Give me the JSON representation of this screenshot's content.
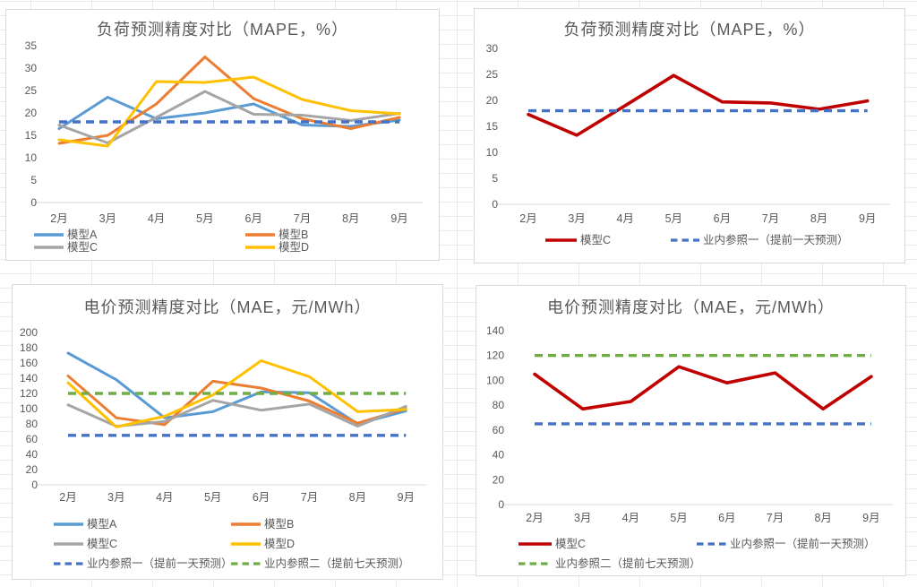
{
  "sheet": {
    "description": "spreadsheet with four embedded forecast accuracy line charts"
  },
  "months": [
    "2月",
    "3月",
    "4月",
    "5月",
    "6月",
    "7月",
    "8月",
    "9月"
  ],
  "chart_data": [
    {
      "type": "line",
      "title": "负荷预测精度对比（MAPE，%）",
      "categories": [
        "2月",
        "3月",
        "4月",
        "5月",
        "6月",
        "7月",
        "8月",
        "9月"
      ],
      "ylim": [
        0,
        35
      ],
      "y_ticks": [
        0,
        5,
        10,
        15,
        20,
        25,
        30,
        35
      ],
      "gridlines": false,
      "legend_position": "bottom",
      "series": [
        {
          "name": "模型A",
          "key": "model-a",
          "color": "#5B9BD5",
          "dash": false,
          "in_legend": true,
          "values": [
            16.5,
            23.5,
            18.7,
            20,
            22,
            17.3,
            17,
            18.4
          ]
        },
        {
          "name": "模型B",
          "key": "model-b",
          "color": "#ED7D31",
          "dash": false,
          "in_legend": true,
          "values": [
            13.2,
            15,
            22,
            32.5,
            23.2,
            18.7,
            16.5,
            19
          ]
        },
        {
          "name": "模型C",
          "key": "model-c",
          "color": "#A5A5A5",
          "dash": false,
          "in_legend": true,
          "values": [
            17.3,
            13.3,
            19,
            24.8,
            19.7,
            19.5,
            18.3,
            19.9
          ]
        },
        {
          "name": "模型D",
          "key": "model-d",
          "color": "#FFC000",
          "dash": false,
          "in_legend": true,
          "values": [
            14,
            12.6,
            27,
            26.8,
            28,
            23,
            20.5,
            19.8
          ]
        },
        {
          "name": "业内参照一（提前一天预测）",
          "key": "industry-ref-1-day-ahead",
          "color": "#4472C4",
          "dash": true,
          "in_legend": false,
          "values": [
            18,
            18,
            18,
            18,
            18,
            18,
            18,
            18
          ]
        }
      ]
    },
    {
      "type": "line",
      "title": "负荷预测精度对比（MAPE，%）",
      "categories": [
        "2月",
        "3月",
        "4月",
        "5月",
        "6月",
        "7月",
        "8月",
        "9月"
      ],
      "ylim": [
        0,
        30
      ],
      "y_ticks": [
        0,
        5,
        10,
        15,
        20,
        25,
        30
      ],
      "gridlines": false,
      "legend_position": "bottom",
      "series": [
        {
          "name": "模型C",
          "key": "model-c",
          "color": "#C00000",
          "dash": false,
          "in_legend": true,
          "values": [
            17.3,
            13.3,
            19,
            24.8,
            19.7,
            19.5,
            18.3,
            19.9
          ]
        },
        {
          "name": "业内参照一（提前一天预测）",
          "key": "industry-ref-1-day-ahead",
          "color": "#4472C4",
          "dash": true,
          "in_legend": true,
          "values": [
            18,
            18,
            18,
            18,
            18,
            18,
            18,
            18
          ]
        }
      ]
    },
    {
      "type": "line",
      "title": "电价预测精度对比（MAE，元/MWh）",
      "categories": [
        "2月",
        "3月",
        "4月",
        "5月",
        "6月",
        "7月",
        "8月",
        "9月"
      ],
      "ylim": [
        0,
        200
      ],
      "y_ticks": [
        0,
        20,
        40,
        60,
        80,
        100,
        120,
        140,
        160,
        180,
        200
      ],
      "gridlines": false,
      "legend_position": "bottom",
      "series": [
        {
          "name": "模型A",
          "key": "model-a",
          "color": "#5B9BD5",
          "dash": false,
          "in_legend": true,
          "values": [
            173,
            138,
            88,
            96,
            122,
            121,
            80,
            97
          ]
        },
        {
          "name": "模型B",
          "key": "model-b",
          "color": "#ED7D31",
          "dash": false,
          "in_legend": true,
          "values": [
            143,
            88,
            79,
            136,
            127,
            110,
            81,
            100
          ]
        },
        {
          "name": "模型C",
          "key": "model-c",
          "color": "#A5A5A5",
          "dash": false,
          "in_legend": true,
          "values": [
            105,
            77,
            83,
            111,
            98,
            106,
            77,
            103
          ]
        },
        {
          "name": "模型D",
          "key": "model-d",
          "color": "#FFC000",
          "dash": false,
          "in_legend": true,
          "values": [
            134,
            76,
            90,
            118,
            163,
            142,
            96,
            99
          ]
        },
        {
          "name": "业内参照一（提前一天预测）",
          "key": "industry-ref-1-day-ahead",
          "color": "#4472C4",
          "dash": true,
          "in_legend": true,
          "values": [
            65,
            65,
            65,
            65,
            65,
            65,
            65,
            65
          ]
        },
        {
          "name": "业内参照二（提前七天预测）",
          "key": "industry-ref-2-seven-day-ahead",
          "color": "#70AD47",
          "dash": true,
          "in_legend": true,
          "values": [
            120,
            120,
            120,
            120,
            120,
            120,
            120,
            120
          ]
        }
      ]
    },
    {
      "type": "line",
      "title": "电价预测精度对比（MAE，元/MWh）",
      "categories": [
        "2月",
        "3月",
        "4月",
        "5月",
        "6月",
        "7月",
        "8月",
        "9月"
      ],
      "ylim": [
        0,
        140
      ],
      "y_ticks": [
        0,
        20,
        40,
        60,
        80,
        100,
        120,
        140
      ],
      "gridlines": false,
      "legend_position": "bottom",
      "series": [
        {
          "name": "模型C",
          "key": "model-c",
          "color": "#C00000",
          "dash": false,
          "in_legend": true,
          "values": [
            105,
            77,
            83,
            111,
            98,
            106,
            77,
            103
          ]
        },
        {
          "name": "业内参照一（提前一天预测）",
          "key": "industry-ref-1-day-ahead",
          "color": "#4472C4",
          "dash": true,
          "in_legend": true,
          "values": [
            65,
            65,
            65,
            65,
            65,
            65,
            65,
            65
          ]
        },
        {
          "name": "业内参照二（提前七天预测）",
          "key": "industry-ref-2-seven-day-ahead",
          "color": "#70AD47",
          "dash": true,
          "in_legend": true,
          "values": [
            120,
            120,
            120,
            120,
            120,
            120,
            120,
            120
          ]
        }
      ]
    }
  ],
  "theme": {
    "text_color": "#595959",
    "axis_line_color": "#D9D9D9",
    "panel_border_color": "#D9D9D9",
    "worksheet_grid_color": "#E9E9E9"
  }
}
